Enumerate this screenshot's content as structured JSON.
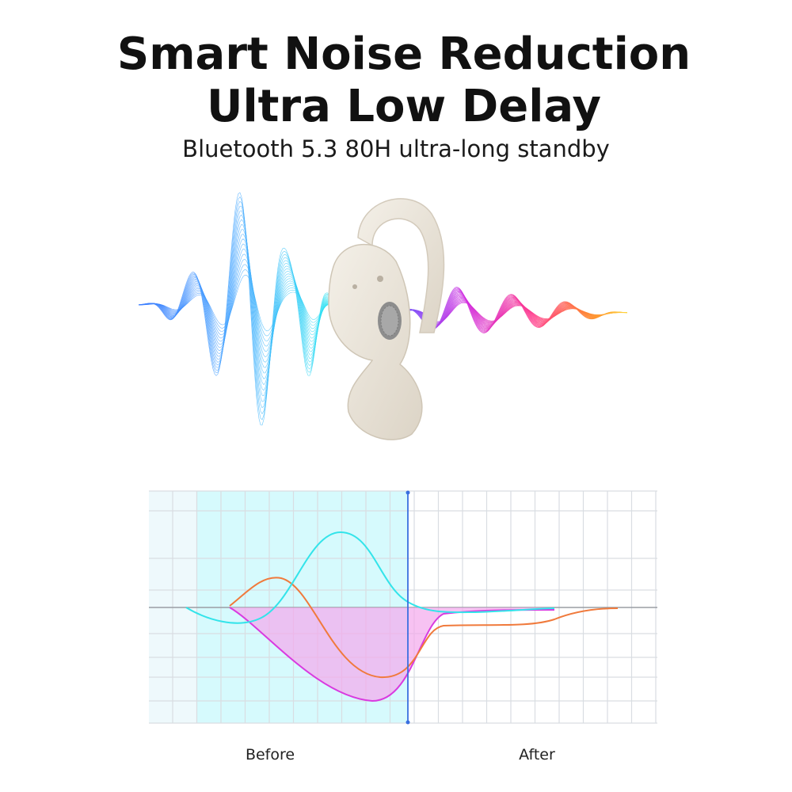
{
  "header": {
    "title_lines": [
      "Smart Noise Reduction",
      "Ultra Low Delay"
    ],
    "subtitle": "Bluetooth 5.3 80H ultra-long standby"
  },
  "comparison": {
    "labels": [
      "Before",
      "After"
    ]
  }
}
